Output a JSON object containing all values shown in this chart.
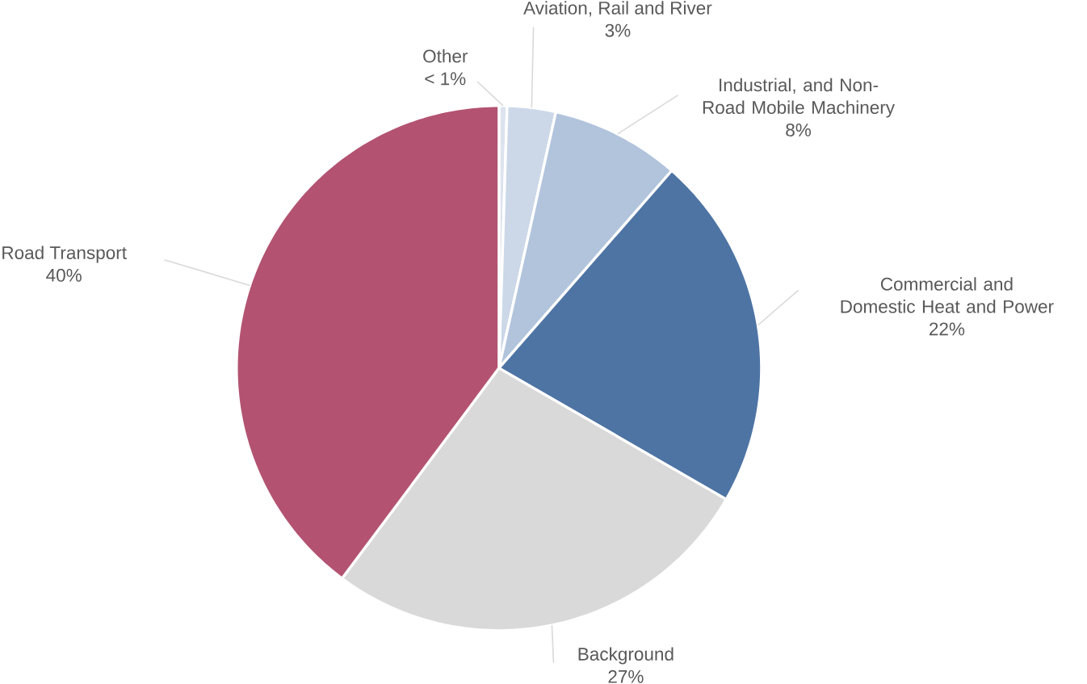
{
  "chart_data": {
    "type": "pie",
    "categories": [
      "Other",
      "Aviation, Rail and River",
      "Industrial, and Non-Road Mobile Machinery",
      "Commercial and Domestic Heat and Power",
      "Background",
      "Road Transport"
    ],
    "values": [
      0.5,
      3,
      8,
      22,
      27,
      40
    ],
    "value_labels": [
      "< 1%",
      "3%",
      "8%",
      "22%",
      "27%",
      "40%"
    ],
    "colors": [
      "#dce3ee",
      "#ccd8e8",
      "#b1c4dc",
      "#4e74a4",
      "#d9d9d9",
      "#b35371"
    ]
  }
}
